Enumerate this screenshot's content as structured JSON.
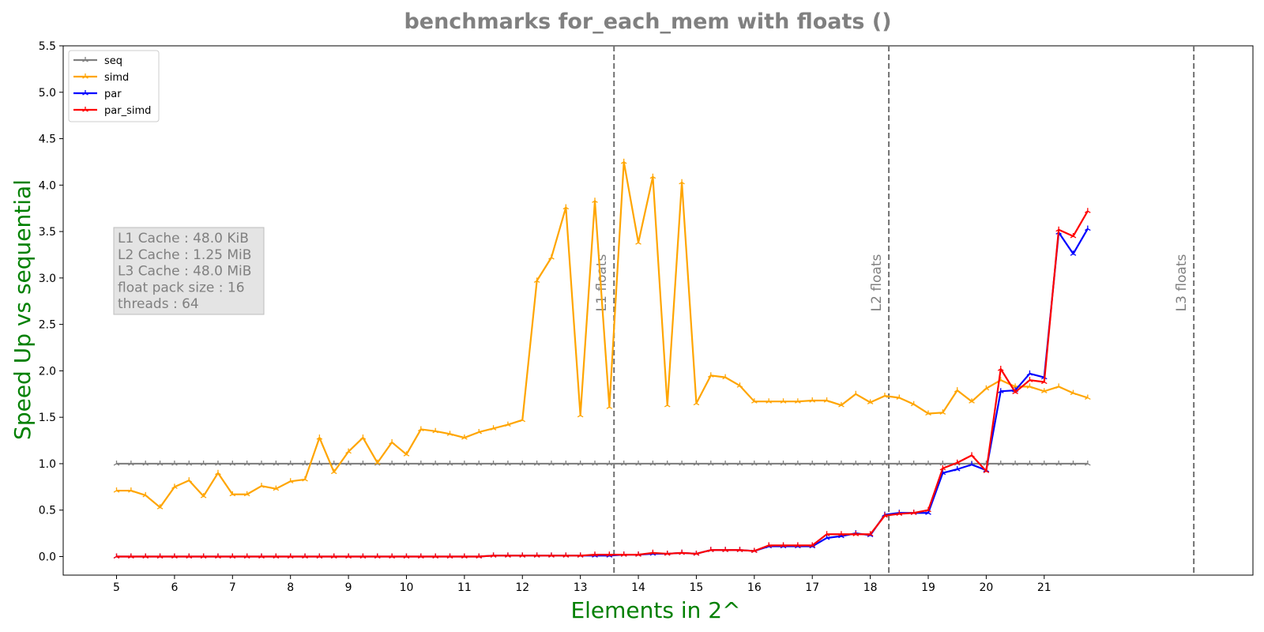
{
  "chart_data": {
    "type": "line",
    "title": "benchmarks for_each_mem with floats  ()",
    "xlabel": "Elements in 2^",
    "ylabel": "Speed Up vs sequential",
    "xlim": [
      4.08,
      24.6
    ],
    "ylim": [
      -0.2,
      5.5
    ],
    "xticks": [
      "5",
      "6",
      "7",
      "8",
      "9",
      "10",
      "11",
      "12",
      "13",
      "14",
      "15",
      "16",
      "17",
      "18",
      "19",
      "20",
      "21"
    ],
    "yticks": [
      "0.0",
      "0.5",
      "1.0",
      "1.5",
      "2.0",
      "2.5",
      "3.0",
      "3.5",
      "4.0",
      "4.5",
      "5.0",
      "5.5"
    ],
    "grid": false,
    "legend_position": "upper-left",
    "x": [
      5,
      5.25,
      5.5,
      5.75,
      6,
      6.25,
      6.5,
      6.75,
      7,
      7.25,
      7.5,
      7.75,
      8,
      8.25,
      8.5,
      8.75,
      9,
      9.25,
      9.5,
      9.75,
      10,
      10.25,
      10.5,
      10.75,
      11,
      11.25,
      11.5,
      11.75,
      12,
      12.25,
      12.5,
      12.75,
      13,
      13.25,
      13.5,
      13.75,
      14,
      14.25,
      14.5,
      14.75,
      15,
      15.25,
      15.5,
      15.75,
      16,
      16.25,
      16.5,
      16.75,
      17,
      17.25,
      17.5,
      17.75,
      18,
      18.25,
      18.5,
      18.75,
      19,
      19.25,
      19.5,
      19.75,
      20,
      20.25,
      20.5,
      20.75,
      21,
      21.25,
      21.5,
      21.75
    ],
    "series": [
      {
        "name": "seq",
        "color": "#808080",
        "values": [
          1,
          1,
          1,
          1,
          1,
          1,
          1,
          1,
          1,
          1,
          1,
          1,
          1,
          1,
          1,
          1,
          1,
          1,
          1,
          1,
          1,
          1,
          1,
          1,
          1,
          1,
          1,
          1,
          1,
          1,
          1,
          1,
          1,
          1,
          1,
          1,
          1,
          1,
          1,
          1,
          1,
          1,
          1,
          1,
          1,
          1,
          1,
          1,
          1,
          1,
          1,
          1,
          1,
          1,
          1,
          1,
          1,
          1,
          1,
          1,
          1,
          1,
          1,
          1,
          1,
          1,
          1,
          1
        ]
      },
      {
        "name": "simd",
        "color": "#FFA500",
        "values": [
          0.71,
          0.71,
          0.66,
          0.53,
          0.75,
          0.82,
          0.65,
          0.9,
          0.67,
          0.67,
          0.76,
          0.73,
          0.81,
          0.83,
          1.28,
          0.91,
          1.13,
          1.28,
          1.01,
          1.23,
          1.1,
          1.37,
          1.35,
          1.32,
          1.28,
          1.34,
          1.38,
          1.42,
          1.47,
          2.97,
          3.22,
          3.76,
          1.52,
          3.83,
          1.61,
          4.25,
          3.38,
          4.09,
          1.63,
          4.03,
          1.65,
          1.95,
          1.93,
          1.84,
          1.67,
          1.67,
          1.67,
          1.67,
          1.68,
          1.68,
          1.63,
          1.75,
          1.66,
          1.73,
          1.71,
          1.64,
          1.54,
          1.55,
          1.79,
          1.67,
          1.81,
          1.9,
          1.83,
          1.83,
          1.78,
          1.83,
          1.76,
          1.71
        ]
      },
      {
        "name": "par",
        "color": "#0000FF",
        "values": [
          0,
          0,
          0,
          0,
          0,
          0,
          0,
          0,
          0,
          0,
          0,
          0,
          0,
          0,
          0,
          0,
          0,
          0,
          0,
          0,
          0,
          0,
          0,
          0,
          0,
          0,
          0.01,
          0.01,
          0.01,
          0.01,
          0.01,
          0.01,
          0.01,
          0.01,
          0.01,
          0.02,
          0.02,
          0.03,
          0.03,
          0.04,
          0.03,
          0.07,
          0.07,
          0.07,
          0.06,
          0.11,
          0.11,
          0.11,
          0.11,
          0.2,
          0.22,
          0.25,
          0.23,
          0.45,
          0.47,
          0.47,
          0.47,
          0.9,
          0.94,
          0.99,
          0.93,
          1.78,
          1.79,
          1.97,
          1.93,
          3.49,
          3.26,
          3.53
        ]
      },
      {
        "name": "par_simd",
        "color": "#FF0000",
        "values": [
          0,
          0,
          0,
          0,
          0,
          0,
          0,
          0,
          0,
          0,
          0,
          0,
          0,
          0,
          0,
          0,
          0,
          0,
          0,
          0,
          0,
          0,
          0,
          0,
          0,
          0,
          0.01,
          0.01,
          0.01,
          0.01,
          0.01,
          0.01,
          0.01,
          0.02,
          0.02,
          0.02,
          0.02,
          0.04,
          0.03,
          0.04,
          0.03,
          0.07,
          0.07,
          0.07,
          0.06,
          0.12,
          0.12,
          0.12,
          0.12,
          0.24,
          0.24,
          0.24,
          0.24,
          0.44,
          0.46,
          0.47,
          0.5,
          0.95,
          1.01,
          1.09,
          0.92,
          2.02,
          1.77,
          1.9,
          1.88,
          3.52,
          3.45,
          3.72
        ]
      }
    ],
    "vlines": [
      {
        "x": 13.58,
        "label": "L1 floats"
      },
      {
        "x": 18.32,
        "label": "L2 floats"
      },
      {
        "x": 23.58,
        "label": "L3 floats"
      }
    ],
    "info_box": [
      "L1 Cache : 48.0 KiB",
      "L2 Cache : 1.25 MiB",
      "L3 Cache : 48.0 MiB",
      "float pack size : 16",
      "threads : 64"
    ]
  }
}
